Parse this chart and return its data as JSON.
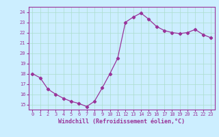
{
  "x": [
    0,
    1,
    2,
    3,
    4,
    5,
    6,
    7,
    8,
    9,
    10,
    11,
    12,
    13,
    14,
    15,
    16,
    17,
    18,
    19,
    20,
    21,
    22,
    23
  ],
  "y": [
    18.0,
    17.6,
    16.5,
    16.0,
    15.6,
    15.3,
    15.1,
    14.8,
    15.3,
    16.6,
    18.0,
    19.5,
    23.0,
    23.5,
    23.9,
    23.3,
    22.6,
    22.2,
    22.0,
    21.9,
    22.0,
    22.3,
    21.8,
    21.5
  ],
  "line_color": "#993399",
  "marker": "D",
  "markersize": 2.2,
  "bg_color": "#cceeff",
  "grid_color": "#aaddcc",
  "xlabel": "Windchill (Refroidissement éolien,°C)",
  "xlabel_color": "#993399",
  "tick_color": "#993399",
  "spine_color": "#993399",
  "ylim": [
    14.5,
    24.5
  ],
  "yticks": [
    15,
    16,
    17,
    18,
    19,
    20,
    21,
    22,
    23,
    24
  ],
  "xlim": [
    -0.5,
    23.5
  ],
  "xticks": [
    0,
    1,
    2,
    3,
    4,
    5,
    6,
    7,
    8,
    9,
    10,
    11,
    12,
    13,
    14,
    15,
    16,
    17,
    18,
    19,
    20,
    21,
    22,
    23
  ],
  "tick_fontsize": 5.0,
  "xlabel_fontsize": 6.0
}
